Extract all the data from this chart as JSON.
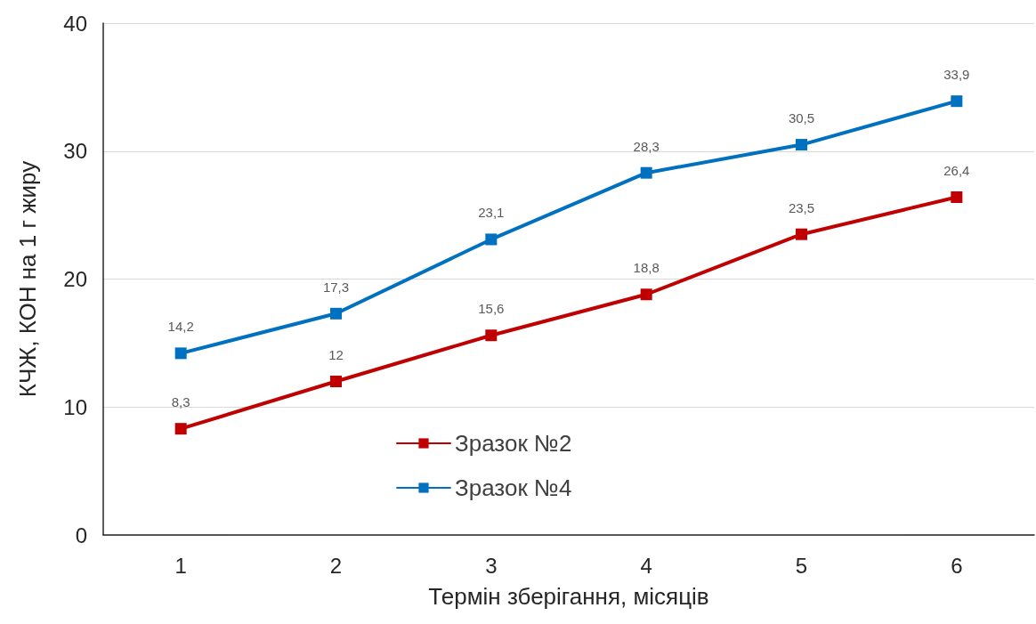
{
  "chart_data": {
    "type": "line",
    "xlabel": "Термін зберігання, місяців",
    "ylabel": "КЧЖ, КОН на 1 г жиру",
    "categories": [
      "1",
      "2",
      "3",
      "4",
      "5",
      "6"
    ],
    "series": [
      {
        "name": "Зразок №2",
        "color": "#c00000",
        "values": [
          8.3,
          12,
          15.6,
          18.8,
          23.5,
          26.4
        ],
        "value_labels": [
          "8,3",
          "12",
          "15,6",
          "18,8",
          "23,5",
          "26,4"
        ]
      },
      {
        "name": "Зразок №4",
        "color": "#0070c0",
        "values": [
          14.2,
          17.3,
          23.1,
          28.3,
          30.5,
          33.9
        ],
        "value_labels": [
          "14,2",
          "17,3",
          "23,1",
          "28,3",
          "30,5",
          "33,9"
        ]
      }
    ],
    "ylim": [
      0,
      40
    ],
    "yticks": [
      0,
      10,
      20,
      30,
      40
    ],
    "grid": "y",
    "legend": "bottom",
    "marker": "square",
    "line_style": "solid"
  }
}
